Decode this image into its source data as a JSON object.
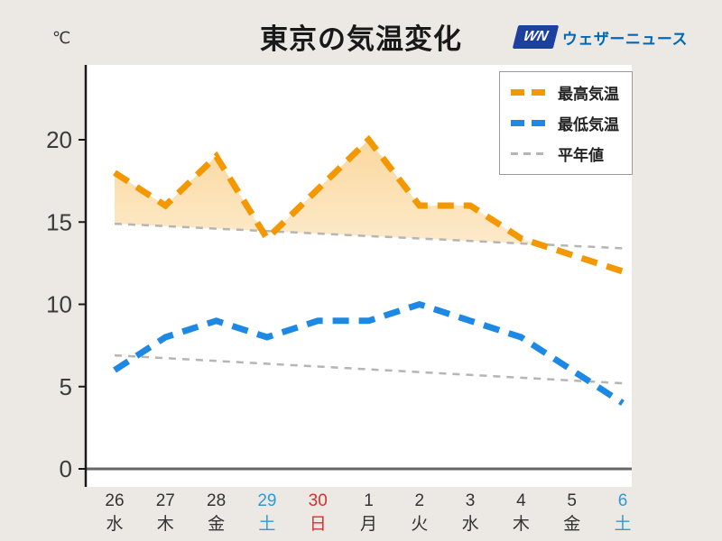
{
  "header": {
    "unit_label": "℃",
    "title": "東京の気温変化",
    "logo": {
      "mark": "WN",
      "brand": "ウェザーニュース"
    }
  },
  "legend": {
    "items": [
      {
        "label": "最高気温",
        "color": "#f39800",
        "style": "thick"
      },
      {
        "label": "最低気温",
        "color": "#1e88e5",
        "style": "thick"
      },
      {
        "label": "平年値",
        "color": "#b5b5b5",
        "style": "thin"
      }
    ]
  },
  "chart_data": {
    "type": "line",
    "title": "東京の気温変化",
    "ylabel": "℃",
    "ylim": [
      0,
      24.5
    ],
    "yticks": [
      0,
      5,
      10,
      15,
      20
    ],
    "grid": false,
    "legend_position": "top-right",
    "x": [
      {
        "day": "26",
        "weekday": "水",
        "type": "weekday"
      },
      {
        "day": "27",
        "weekday": "木",
        "type": "weekday"
      },
      {
        "day": "28",
        "weekday": "金",
        "type": "weekday"
      },
      {
        "day": "29",
        "weekday": "土",
        "type": "saturday"
      },
      {
        "day": "30",
        "weekday": "日",
        "type": "sunday"
      },
      {
        "day": "1",
        "weekday": "月",
        "type": "weekday"
      },
      {
        "day": "2",
        "weekday": "火",
        "type": "weekday"
      },
      {
        "day": "3",
        "weekday": "水",
        "type": "weekday"
      },
      {
        "day": "4",
        "weekday": "木",
        "type": "weekday"
      },
      {
        "day": "5",
        "weekday": "金",
        "type": "weekday"
      },
      {
        "day": "6",
        "weekday": "土",
        "type": "saturday"
      }
    ],
    "label_colors": {
      "weekday": "#333333",
      "saturday": "#2e9bd6",
      "sunday": "#d63031"
    },
    "series": [
      {
        "id": "max-temp",
        "name": "最高気温",
        "values": [
          18,
          16,
          19,
          14,
          17,
          20,
          16,
          16,
          14,
          13,
          12
        ],
        "color": "#f39800",
        "width": 7,
        "dash": "18 11"
      },
      {
        "id": "min-temp",
        "name": "最低気温",
        "values": [
          6,
          8,
          9,
          8,
          9,
          9,
          10,
          9,
          8,
          6,
          4
        ],
        "color": "#1e88e5",
        "width": 7,
        "dash": "18 11"
      },
      {
        "id": "normal-high",
        "name": "平年値(最高)",
        "values": [
          14.9,
          14.75,
          14.6,
          14.45,
          14.3,
          14.15,
          14.0,
          13.85,
          13.7,
          13.55,
          13.4
        ],
        "color": "#b5b5b5",
        "width": 2.5,
        "dash": "8 7"
      },
      {
        "id": "normal-low",
        "name": "平年値(最低)",
        "values": [
          6.9,
          6.73,
          6.56,
          6.39,
          6.22,
          6.05,
          5.88,
          5.71,
          5.54,
          5.37,
          5.2
        ],
        "color": "#b5b5b5",
        "width": 2.5,
        "dash": "8 7"
      }
    ],
    "fill_between": {
      "upper_series": 0,
      "lower_series": 2,
      "color": "#f39800"
    },
    "axis": {
      "line_color": "#1a1a1a",
      "zero_line_color": "#666666",
      "tick_label_color": "#3c3c3c"
    }
  }
}
